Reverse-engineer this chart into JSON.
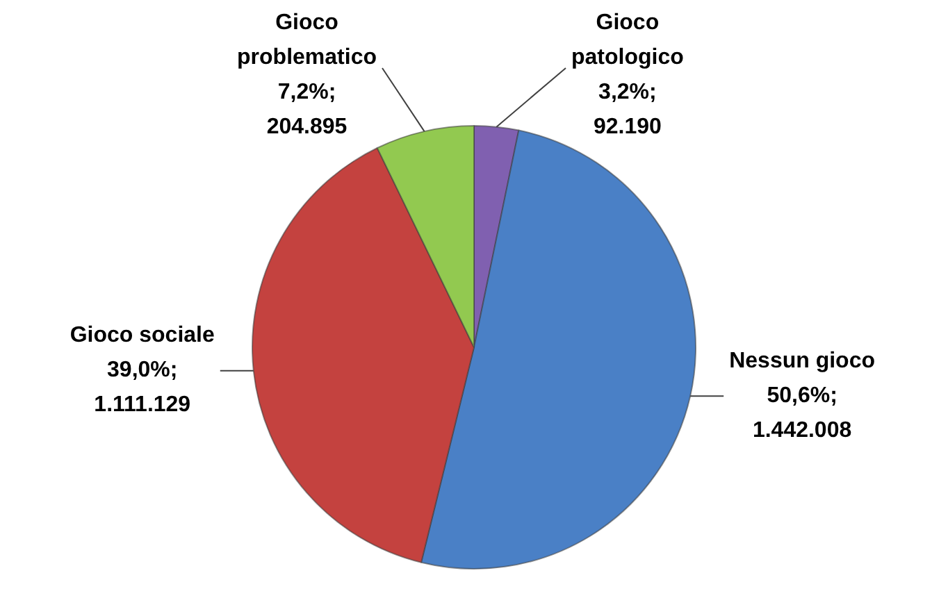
{
  "chart_data": {
    "type": "pie",
    "categories": [
      "Gioco patologico",
      "Nessun gioco",
      "Gioco sociale",
      "Gioco problematico"
    ],
    "values": [
      92190,
      1442008,
      1111129,
      204895
    ],
    "colors": [
      "#8060b0",
      "#4a80c6",
      "#c4423f",
      "#92c950"
    ],
    "value_labels": [
      "3,2%; 92.190",
      "50,6%; 1.442.008",
      "39,0%; 1.111.129",
      "7,2%; 204.895"
    ]
  }
}
